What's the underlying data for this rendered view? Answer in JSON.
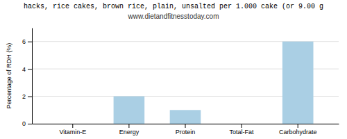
{
  "chart_data": {
    "type": "bar",
    "title": "hacks, rice cakes, brown rice, plain, unsalted per 1.000 cake (or 9.00 g",
    "subtitle": "www.dietandfitnesstoday.com",
    "categories": [
      "Vitamin-E",
      "Energy",
      "Protein",
      "Total-Fat",
      "Carbohydrate"
    ],
    "values": [
      0.0,
      2.0,
      1.0,
      0.0,
      6.0
    ],
    "color": "#aacfe4",
    "ylabel": "Percentage of RDH (%)",
    "ylim": [
      0,
      7
    ],
    "yticks": [
      0,
      2,
      4,
      6
    ],
    "grid": true
  }
}
